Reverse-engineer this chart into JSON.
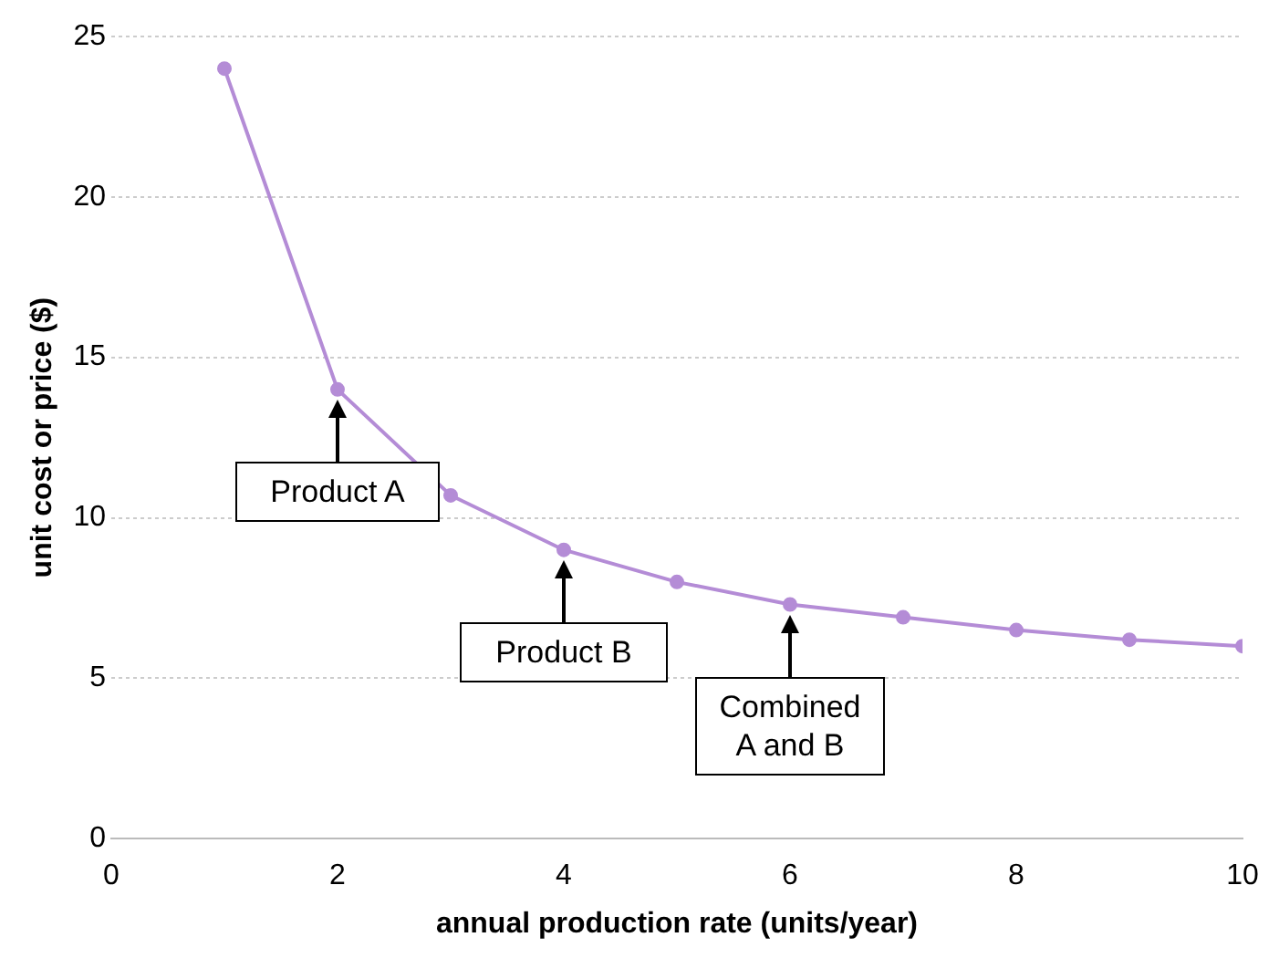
{
  "chart_data": {
    "type": "line",
    "xlabel": "annual production rate (units/year)",
    "ylabel": "unit cost or price ($)",
    "x": [
      1,
      2,
      3,
      4,
      5,
      6,
      7,
      8,
      9,
      10
    ],
    "series": [
      {
        "color": "#b48cd6",
        "values": [
          24,
          14,
          10.7,
          9,
          8,
          7.3,
          6.9,
          6.5,
          6.2,
          6
        ]
      }
    ],
    "xlim": [
      0,
      10
    ],
    "xticks": [
      0,
      2,
      4,
      6,
      8,
      10
    ],
    "ylim": [
      0,
      25
    ],
    "yticks": [
      0,
      5,
      10,
      15,
      20,
      25
    ],
    "grid": "y",
    "legend": false,
    "marker": "circle",
    "line_style": "solid",
    "annotations": [
      {
        "text": "Product A",
        "x": 2,
        "y": 14
      },
      {
        "text": "Product B",
        "x": 4,
        "y": 9
      },
      {
        "text": "Combined A and B",
        "x": 6,
        "y": 7.3
      }
    ]
  }
}
